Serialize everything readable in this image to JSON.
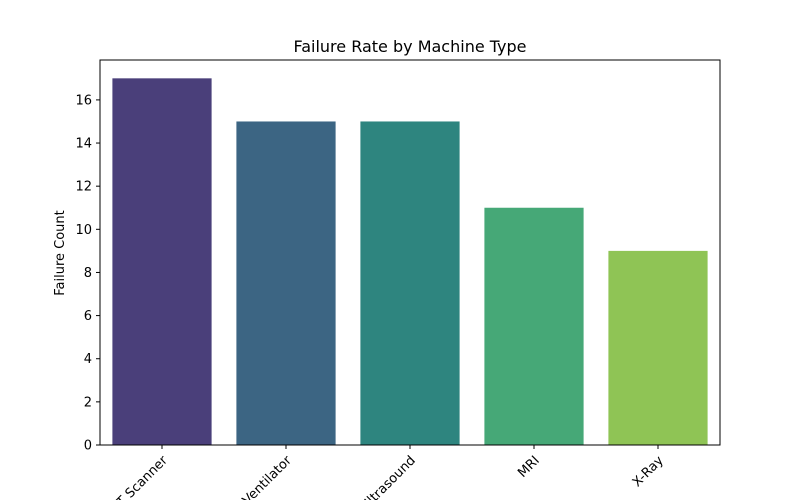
{
  "chart_data": {
    "type": "bar",
    "title": "Failure Rate by Machine Type",
    "xlabel": "",
    "ylabel": "Failure Count",
    "categories": [
      "CT Scanner",
      "Ventilator",
      "Ultrasound",
      "MRI",
      "X-Ray"
    ],
    "values": [
      17,
      15,
      15,
      11,
      9
    ],
    "colors": [
      "#4a3f7a",
      "#3c6583",
      "#2e857f",
      "#46a877",
      "#8fc455"
    ],
    "ylim": [
      0,
      17.85
    ],
    "yticks": [
      0,
      2,
      4,
      6,
      8,
      10,
      12,
      14,
      16
    ],
    "grid": false,
    "x_tick_rotation_deg": 45
  }
}
